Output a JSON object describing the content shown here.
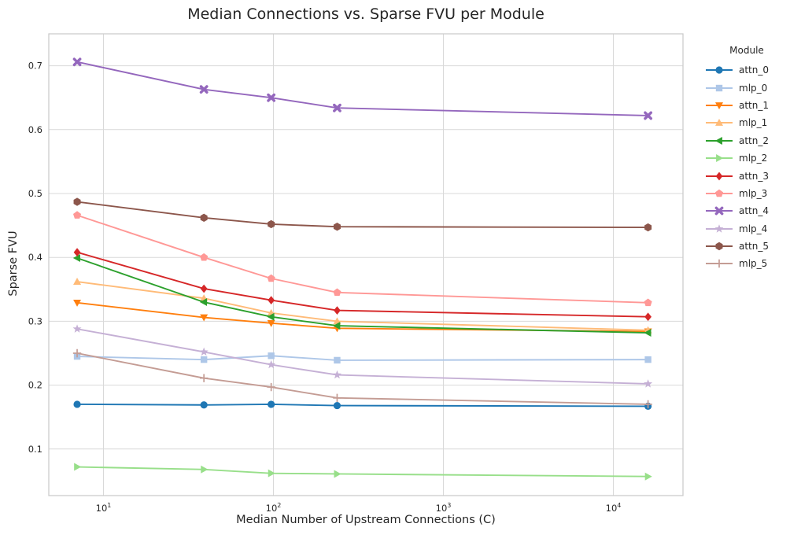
{
  "chart_data": {
    "type": "line",
    "title": "Median Connections vs. Sparse FVU per Module",
    "xlabel": "Median Number of Upstream Connections (C)",
    "ylabel": "Sparse FVU",
    "x_scale": "log",
    "grid": true,
    "legend_title": "Module",
    "legend_position": "right",
    "xlim": [
      4.8,
      26000
    ],
    "ylim": [
      0.027,
      0.75
    ],
    "x_ticks": [
      {
        "base": "10",
        "exp": "1"
      },
      {
        "base": "10",
        "exp": "2"
      },
      {
        "base": "10",
        "exp": "3"
      },
      {
        "base": "10",
        "exp": "4"
      }
    ],
    "y_ticks": [
      "0.1",
      "0.2",
      "0.3",
      "0.4",
      "0.5",
      "0.6",
      "0.7"
    ],
    "x": [
      7,
      39,
      97,
      237,
      16000
    ],
    "series": [
      {
        "name": "attn_0",
        "color": "#1f77b4",
        "marker": "circle",
        "values": [
          0.17,
          0.169,
          0.17,
          0.168,
          0.167
        ]
      },
      {
        "name": "mlp_0",
        "color": "#aec7e8",
        "marker": "square",
        "values": [
          0.245,
          0.24,
          0.246,
          0.239,
          0.24
        ]
      },
      {
        "name": "attn_1",
        "color": "#ff7f0e",
        "marker": "triangle-down",
        "values": [
          0.329,
          0.306,
          0.297,
          0.289,
          0.284
        ]
      },
      {
        "name": "mlp_1",
        "color": "#ffbb78",
        "marker": "triangle-up",
        "values": [
          0.362,
          0.336,
          0.313,
          0.3,
          0.286
        ]
      },
      {
        "name": "attn_2",
        "color": "#2ca02c",
        "marker": "triangle-left",
        "values": [
          0.399,
          0.33,
          0.307,
          0.293,
          0.282
        ]
      },
      {
        "name": "mlp_2",
        "color": "#98df8a",
        "marker": "triangle-right",
        "values": [
          0.072,
          0.068,
          0.062,
          0.061,
          0.057
        ]
      },
      {
        "name": "attn_3",
        "color": "#d62728",
        "marker": "diamond",
        "values": [
          0.408,
          0.351,
          0.333,
          0.317,
          0.307
        ]
      },
      {
        "name": "mlp_3",
        "color": "#ff9896",
        "marker": "pentagon",
        "values": [
          0.466,
          0.4,
          0.367,
          0.345,
          0.329
        ]
      },
      {
        "name": "attn_4",
        "color": "#9467bd",
        "marker": "x",
        "values": [
          0.706,
          0.663,
          0.65,
          0.634,
          0.622
        ]
      },
      {
        "name": "mlp_4",
        "color": "#c5b0d5",
        "marker": "star",
        "values": [
          0.288,
          0.252,
          0.232,
          0.216,
          0.202
        ]
      },
      {
        "name": "attn_5",
        "color": "#8c564b",
        "marker": "hexagon",
        "values": [
          0.487,
          0.462,
          0.452,
          0.448,
          0.447
        ]
      },
      {
        "name": "mlp_5",
        "color": "#c49c94",
        "marker": "plus",
        "values": [
          0.25,
          0.211,
          0.197,
          0.18,
          0.17
        ]
      }
    ],
    "colors": {
      "grid": "#d9d9d9",
      "axes_border": "#cccccc",
      "text": "#262626"
    }
  }
}
